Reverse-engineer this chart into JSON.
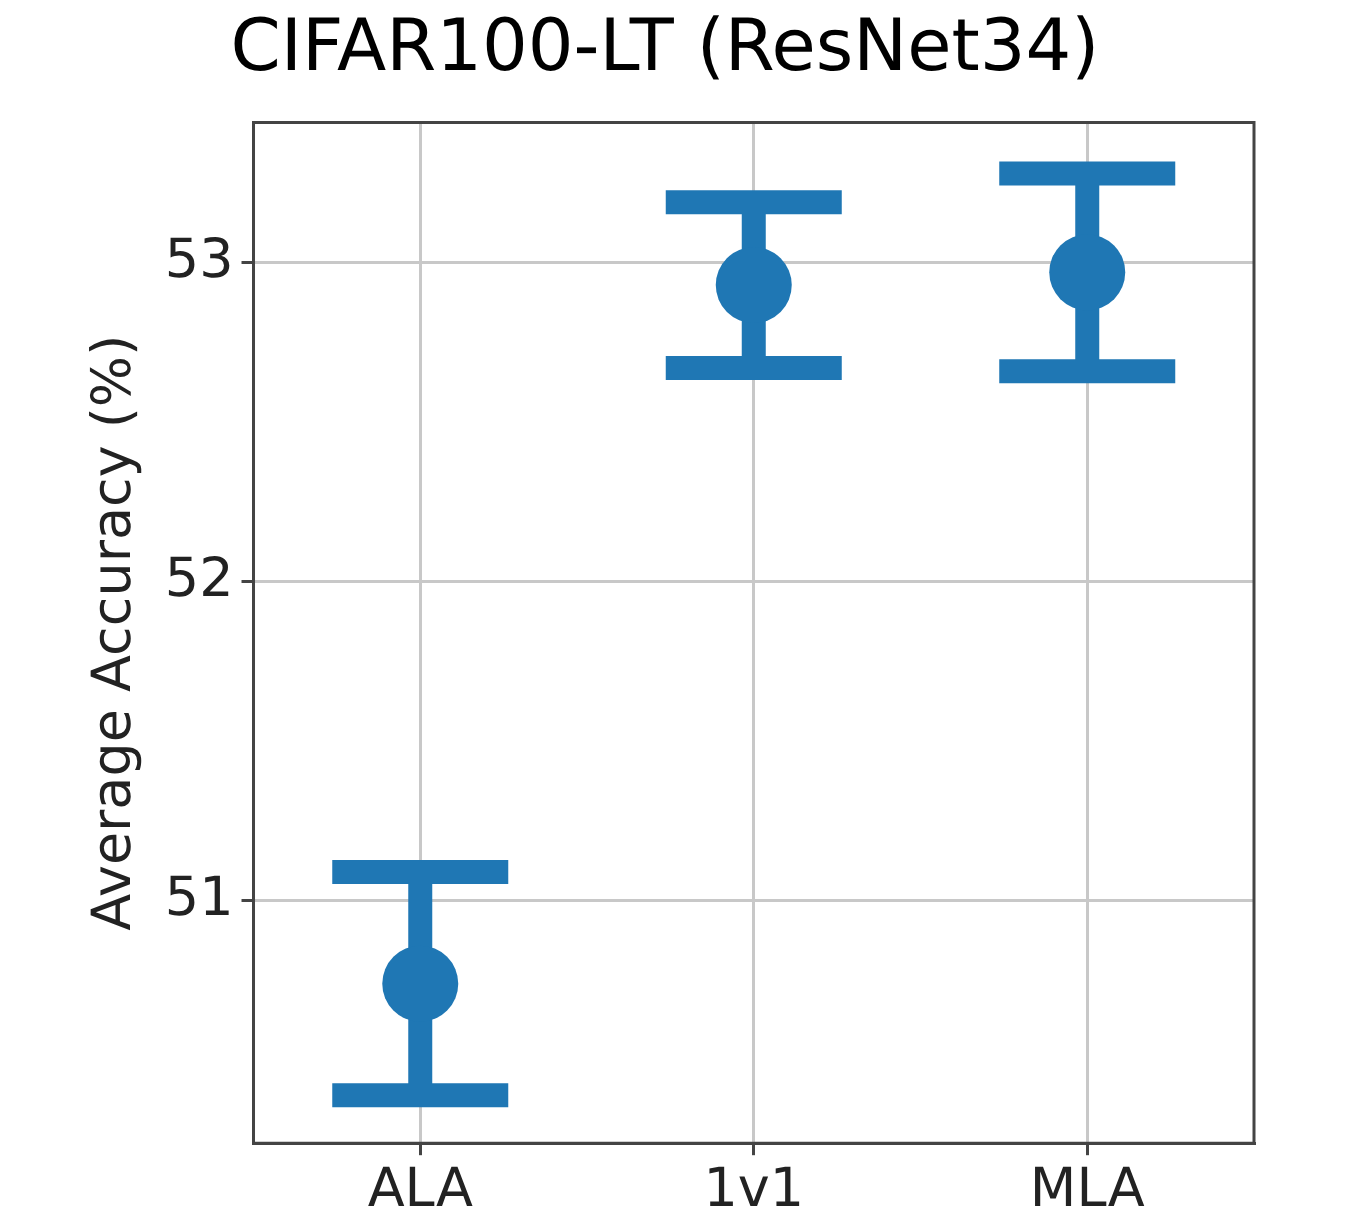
{
  "chart_data": {
    "type": "scatter",
    "title": "CIFAR100-LT (ResNet34)",
    "ylabel": "Average Accuracy (%)",
    "categories": [
      "ALA",
      "1v1",
      "MLA"
    ],
    "values": [
      50.74,
      52.93,
      52.97
    ],
    "errors": [
      0.35,
      0.26,
      0.31
    ],
    "color": "#1f77b4",
    "ylim": [
      50.24,
      53.44
    ],
    "yticks": [
      51,
      52,
      53
    ],
    "grid": true,
    "marker": "circle"
  }
}
